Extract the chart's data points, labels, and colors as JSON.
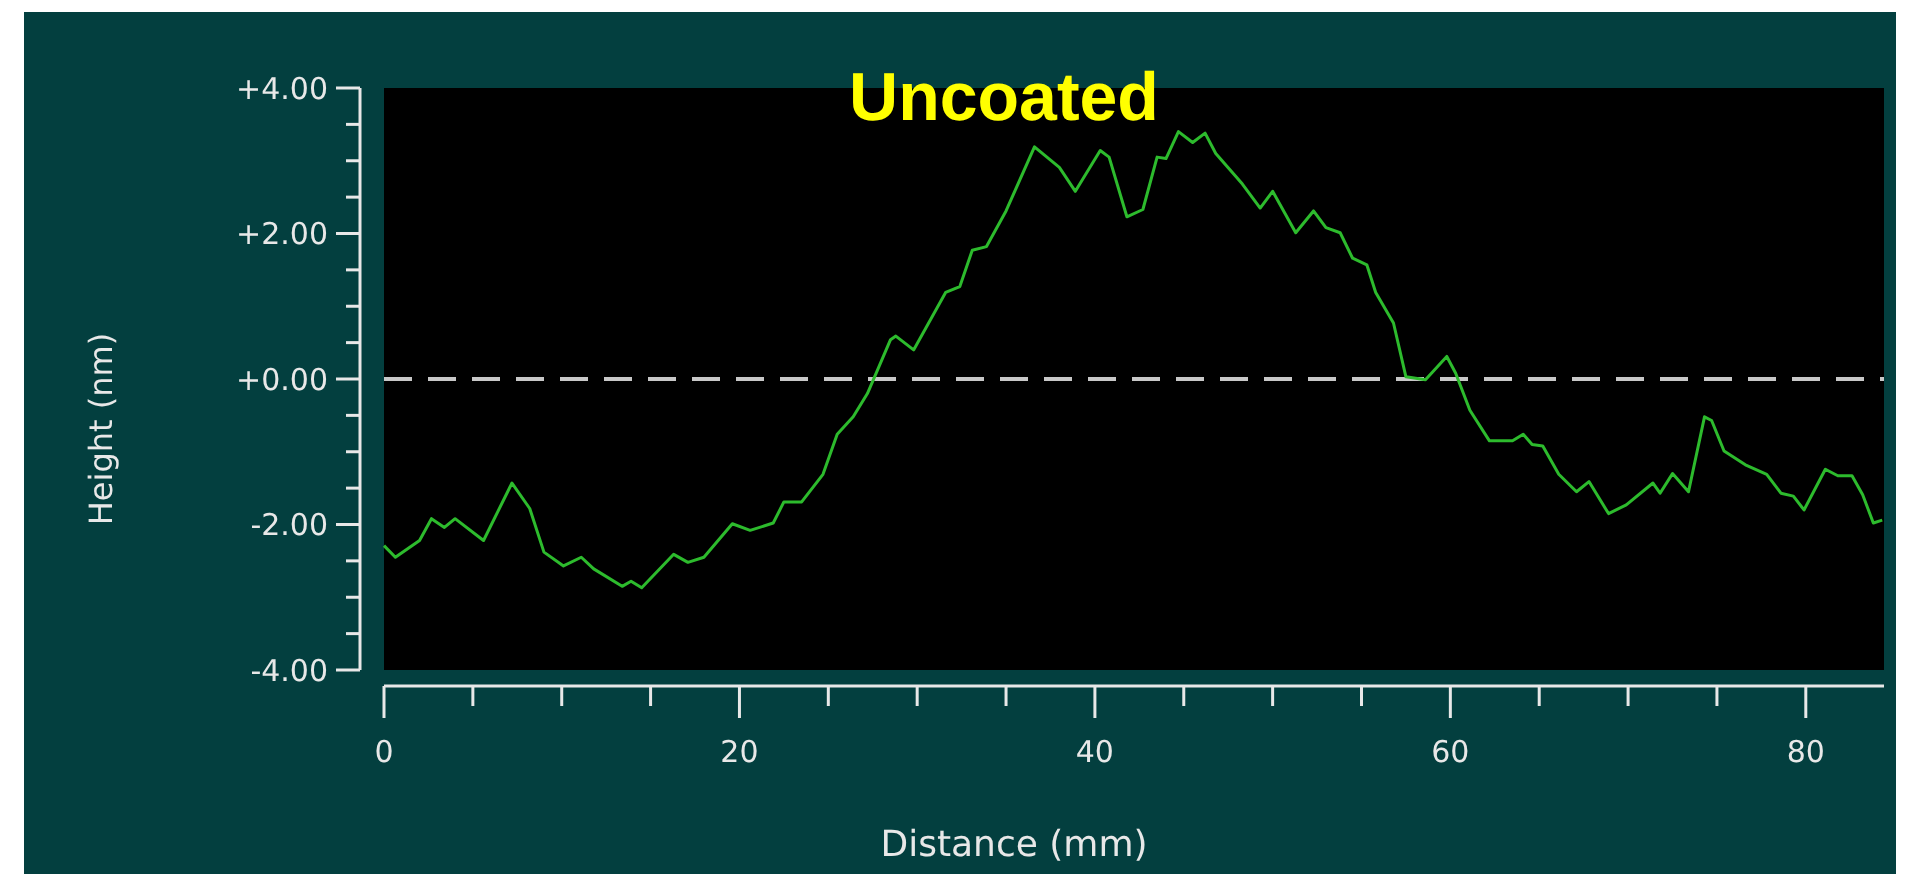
{
  "chart_data": {
    "type": "line",
    "title": "Uncoated",
    "xlabel": "Distance (mm)",
    "ylabel": "Height (nm)",
    "xlim": [
      0,
      84.4
    ],
    "ylim": [
      -4,
      4
    ],
    "xticks": [
      0,
      {
        "value": 5,
        "label": null
      },
      {
        "value": 10,
        "label": null
      },
      {
        "value": 15,
        "label": null
      },
      20,
      {
        "value": 25,
        "label": null
      },
      {
        "value": 30,
        "label": null
      },
      {
        "value": 35,
        "label": null
      },
      40,
      {
        "value": 45,
        "label": null
      },
      {
        "value": 50,
        "label": null
      },
      {
        "value": 55,
        "label": null
      },
      60,
      {
        "value": 65,
        "label": null
      },
      {
        "value": 70,
        "label": null
      },
      {
        "value": 75,
        "label": null
      },
      80
    ],
    "yticks": [
      {
        "value": -4,
        "label": "-4.00"
      },
      {
        "value": -3.5,
        "label": null
      },
      {
        "value": -3,
        "label": null
      },
      {
        "value": -2.5,
        "label": null
      },
      {
        "value": -2,
        "label": "-2.00"
      },
      {
        "value": -1.5,
        "label": null
      },
      {
        "value": -1,
        "label": null
      },
      {
        "value": -0.5,
        "label": null
      },
      {
        "value": 0,
        "label": "+0.00"
      },
      {
        "value": 0.5,
        "label": null
      },
      {
        "value": 1,
        "label": null
      },
      {
        "value": 1.5,
        "label": null
      },
      {
        "value": 2,
        "label": "+2.00"
      },
      {
        "value": 2.5,
        "label": null
      },
      {
        "value": 3,
        "label": null
      },
      {
        "value": 3.5,
        "label": null
      },
      {
        "value": 4,
        "label": "+4.00"
      }
    ],
    "grid": false,
    "marker": "none",
    "line_style": "solid",
    "ref_lines": [
      {
        "axis": "y",
        "value": 0,
        "color": "#c8c8c8",
        "line_style": "dashed"
      }
    ],
    "series": [
      {
        "color": "#2dbb2d",
        "x": [
          0,
          0.64,
          2.0,
          2.67,
          3.4,
          4.0,
          5.6,
          7.2,
          8.2,
          9.0,
          10.1,
          11.1,
          11.8,
          13.4,
          13.9,
          14.5,
          16.3,
          17.1,
          18.0,
          19.6,
          20.6,
          21.9,
          22.5,
          23.5,
          24.7,
          25.5,
          26.4,
          27.2,
          28.5,
          28.8,
          29.8,
          31.6,
          32.4,
          33.1,
          33.9,
          35.0,
          36.6,
          38.0,
          38.9,
          40.3,
          40.8,
          41.8,
          42.7,
          43.5,
          44.0,
          44.7,
          45.5,
          46.2,
          46.8,
          48.3,
          49.3,
          50.0,
          51.3,
          52.3,
          53.0,
          53.8,
          54.5,
          55.3,
          55.8,
          56.8,
          57.5,
          58.6,
          59.8,
          60.3,
          61.1,
          62.2,
          63.5,
          64.1,
          64.6,
          65.2,
          66.1,
          67.1,
          67.8,
          68.9,
          69.9,
          71.4,
          71.8,
          72.5,
          73.4,
          74.3,
          74.7,
          75.4,
          76.6,
          77.8,
          78.6,
          79.3,
          79.9,
          81.1,
          81.8,
          82.6,
          83.2,
          83.8,
          84.3
        ],
        "values": [
          -2.29,
          -2.45,
          -2.22,
          -1.92,
          -2.04,
          -1.92,
          -2.22,
          -1.43,
          -1.78,
          -2.38,
          -2.57,
          -2.45,
          -2.61,
          -2.85,
          -2.78,
          -2.87,
          -2.41,
          -2.52,
          -2.45,
          -1.99,
          -2.08,
          -1.98,
          -1.69,
          -1.69,
          -1.31,
          -0.76,
          -0.52,
          -0.2,
          0.54,
          0.59,
          0.4,
          1.19,
          1.27,
          1.77,
          1.82,
          2.31,
          3.19,
          2.91,
          2.58,
          3.14,
          3.05,
          2.23,
          2.33,
          3.05,
          3.03,
          3.4,
          3.25,
          3.38,
          3.1,
          2.68,
          2.35,
          2.58,
          2.01,
          2.31,
          2.08,
          2.01,
          1.66,
          1.57,
          1.19,
          0.77,
          0.03,
          -0.01,
          0.31,
          0.08,
          -0.43,
          -0.85,
          -0.85,
          -0.76,
          -0.9,
          -0.92,
          -1.31,
          -1.55,
          -1.41,
          -1.85,
          -1.73,
          -1.43,
          -1.57,
          -1.3,
          -1.55,
          -0.52,
          -0.57,
          -0.99,
          -1.18,
          -1.31,
          -1.57,
          -1.61,
          -1.8,
          -1.24,
          -1.33,
          -1.33,
          -1.59,
          -1.98,
          -1.94
        ]
      }
    ]
  }
}
